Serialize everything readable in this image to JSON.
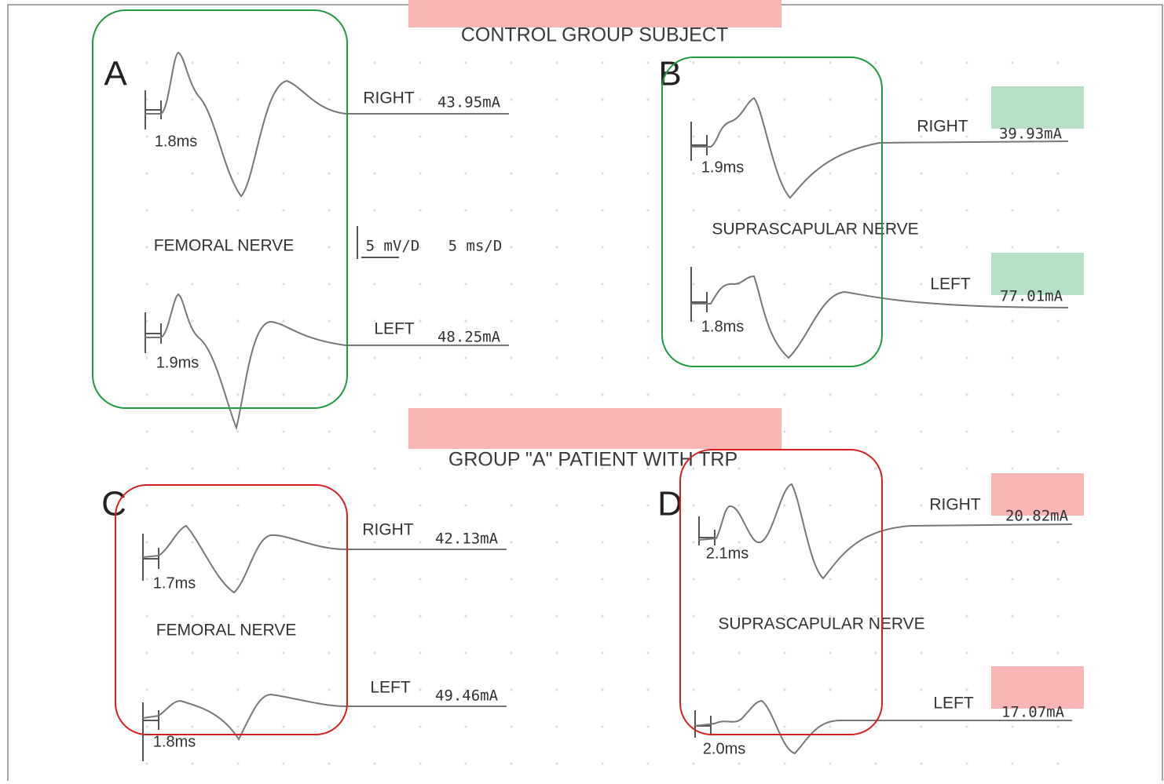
{
  "headers": [
    "CONTROL GROUP SUBJECT",
    "GROUP \"A\" PATIENT WITH TRP"
  ],
  "scale": {
    "amplitude": "5 mV/D",
    "time": "5 ms/D"
  },
  "panels": [
    {
      "label": "A",
      "nerve": "FEMORAL NERVE",
      "traces": [
        {
          "side": "RIGHT",
          "amplitude": "43.95mA",
          "latency": "1.8ms"
        },
        {
          "side": "LEFT",
          "amplitude": "48.25mA",
          "latency": "1.9ms"
        }
      ]
    },
    {
      "label": "B",
      "nerve": "SUPRASCAPULAR NERVE",
      "traces": [
        {
          "side": "RIGHT",
          "amplitude": "39.93mA",
          "latency": "1.9ms"
        },
        {
          "side": "LEFT",
          "amplitude": "77.01mA",
          "latency": "1.8ms"
        }
      ]
    },
    {
      "label": "C",
      "nerve": "FEMORAL NERVE",
      "traces": [
        {
          "side": "RIGHT",
          "amplitude": "42.13mA",
          "latency": "1.7ms"
        },
        {
          "side": "LEFT",
          "amplitude": "49.46mA",
          "latency": "1.8ms"
        }
      ]
    },
    {
      "label": "D",
      "nerve": "SUPRASCAPULAR NERVE",
      "traces": [
        {
          "side": "RIGHT",
          "amplitude": "20.82mA",
          "latency": "2.1ms"
        },
        {
          "side": "LEFT",
          "amplitude": "17.07mA",
          "latency": "2.0ms"
        }
      ]
    }
  ]
}
